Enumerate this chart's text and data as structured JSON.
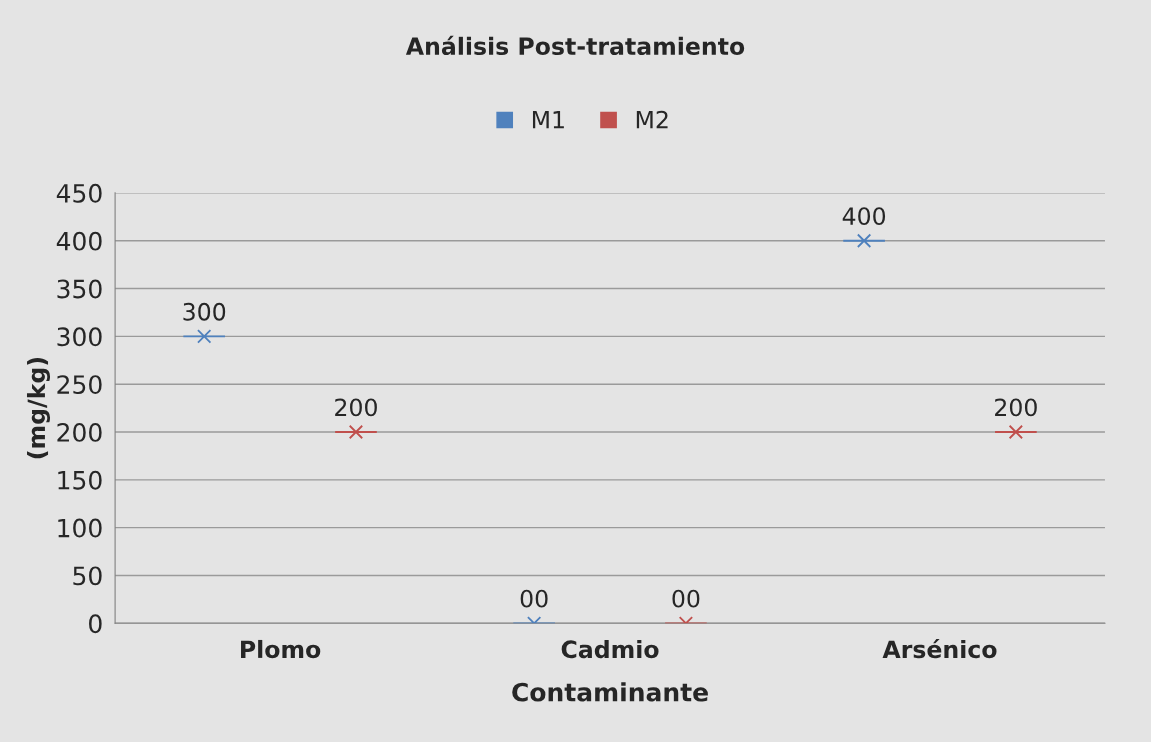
{
  "chart_data": {
    "type": "scatter",
    "title": "Análisis Post-tratamiento",
    "xlabel": "Contaminante",
    "ylabel": "(mg/kg)",
    "categories": [
      "Plomo",
      "Cadmio",
      "Arsénico"
    ],
    "series": [
      {
        "name": "M1",
        "color": "#4f81bd",
        "values": [
          300,
          0,
          400
        ],
        "value_labels": [
          "300",
          "00",
          "400"
        ]
      },
      {
        "name": "M2",
        "color": "#c0504d",
        "values": [
          200,
          0,
          200
        ],
        "value_labels": [
          "200",
          "00",
          "200"
        ]
      }
    ],
    "ylim": [
      0,
      450
    ],
    "yticks": [
      0,
      50,
      100,
      150,
      200,
      250,
      300,
      350,
      400,
      450
    ],
    "grid": "y",
    "legend": "top",
    "marker": "cross"
  }
}
